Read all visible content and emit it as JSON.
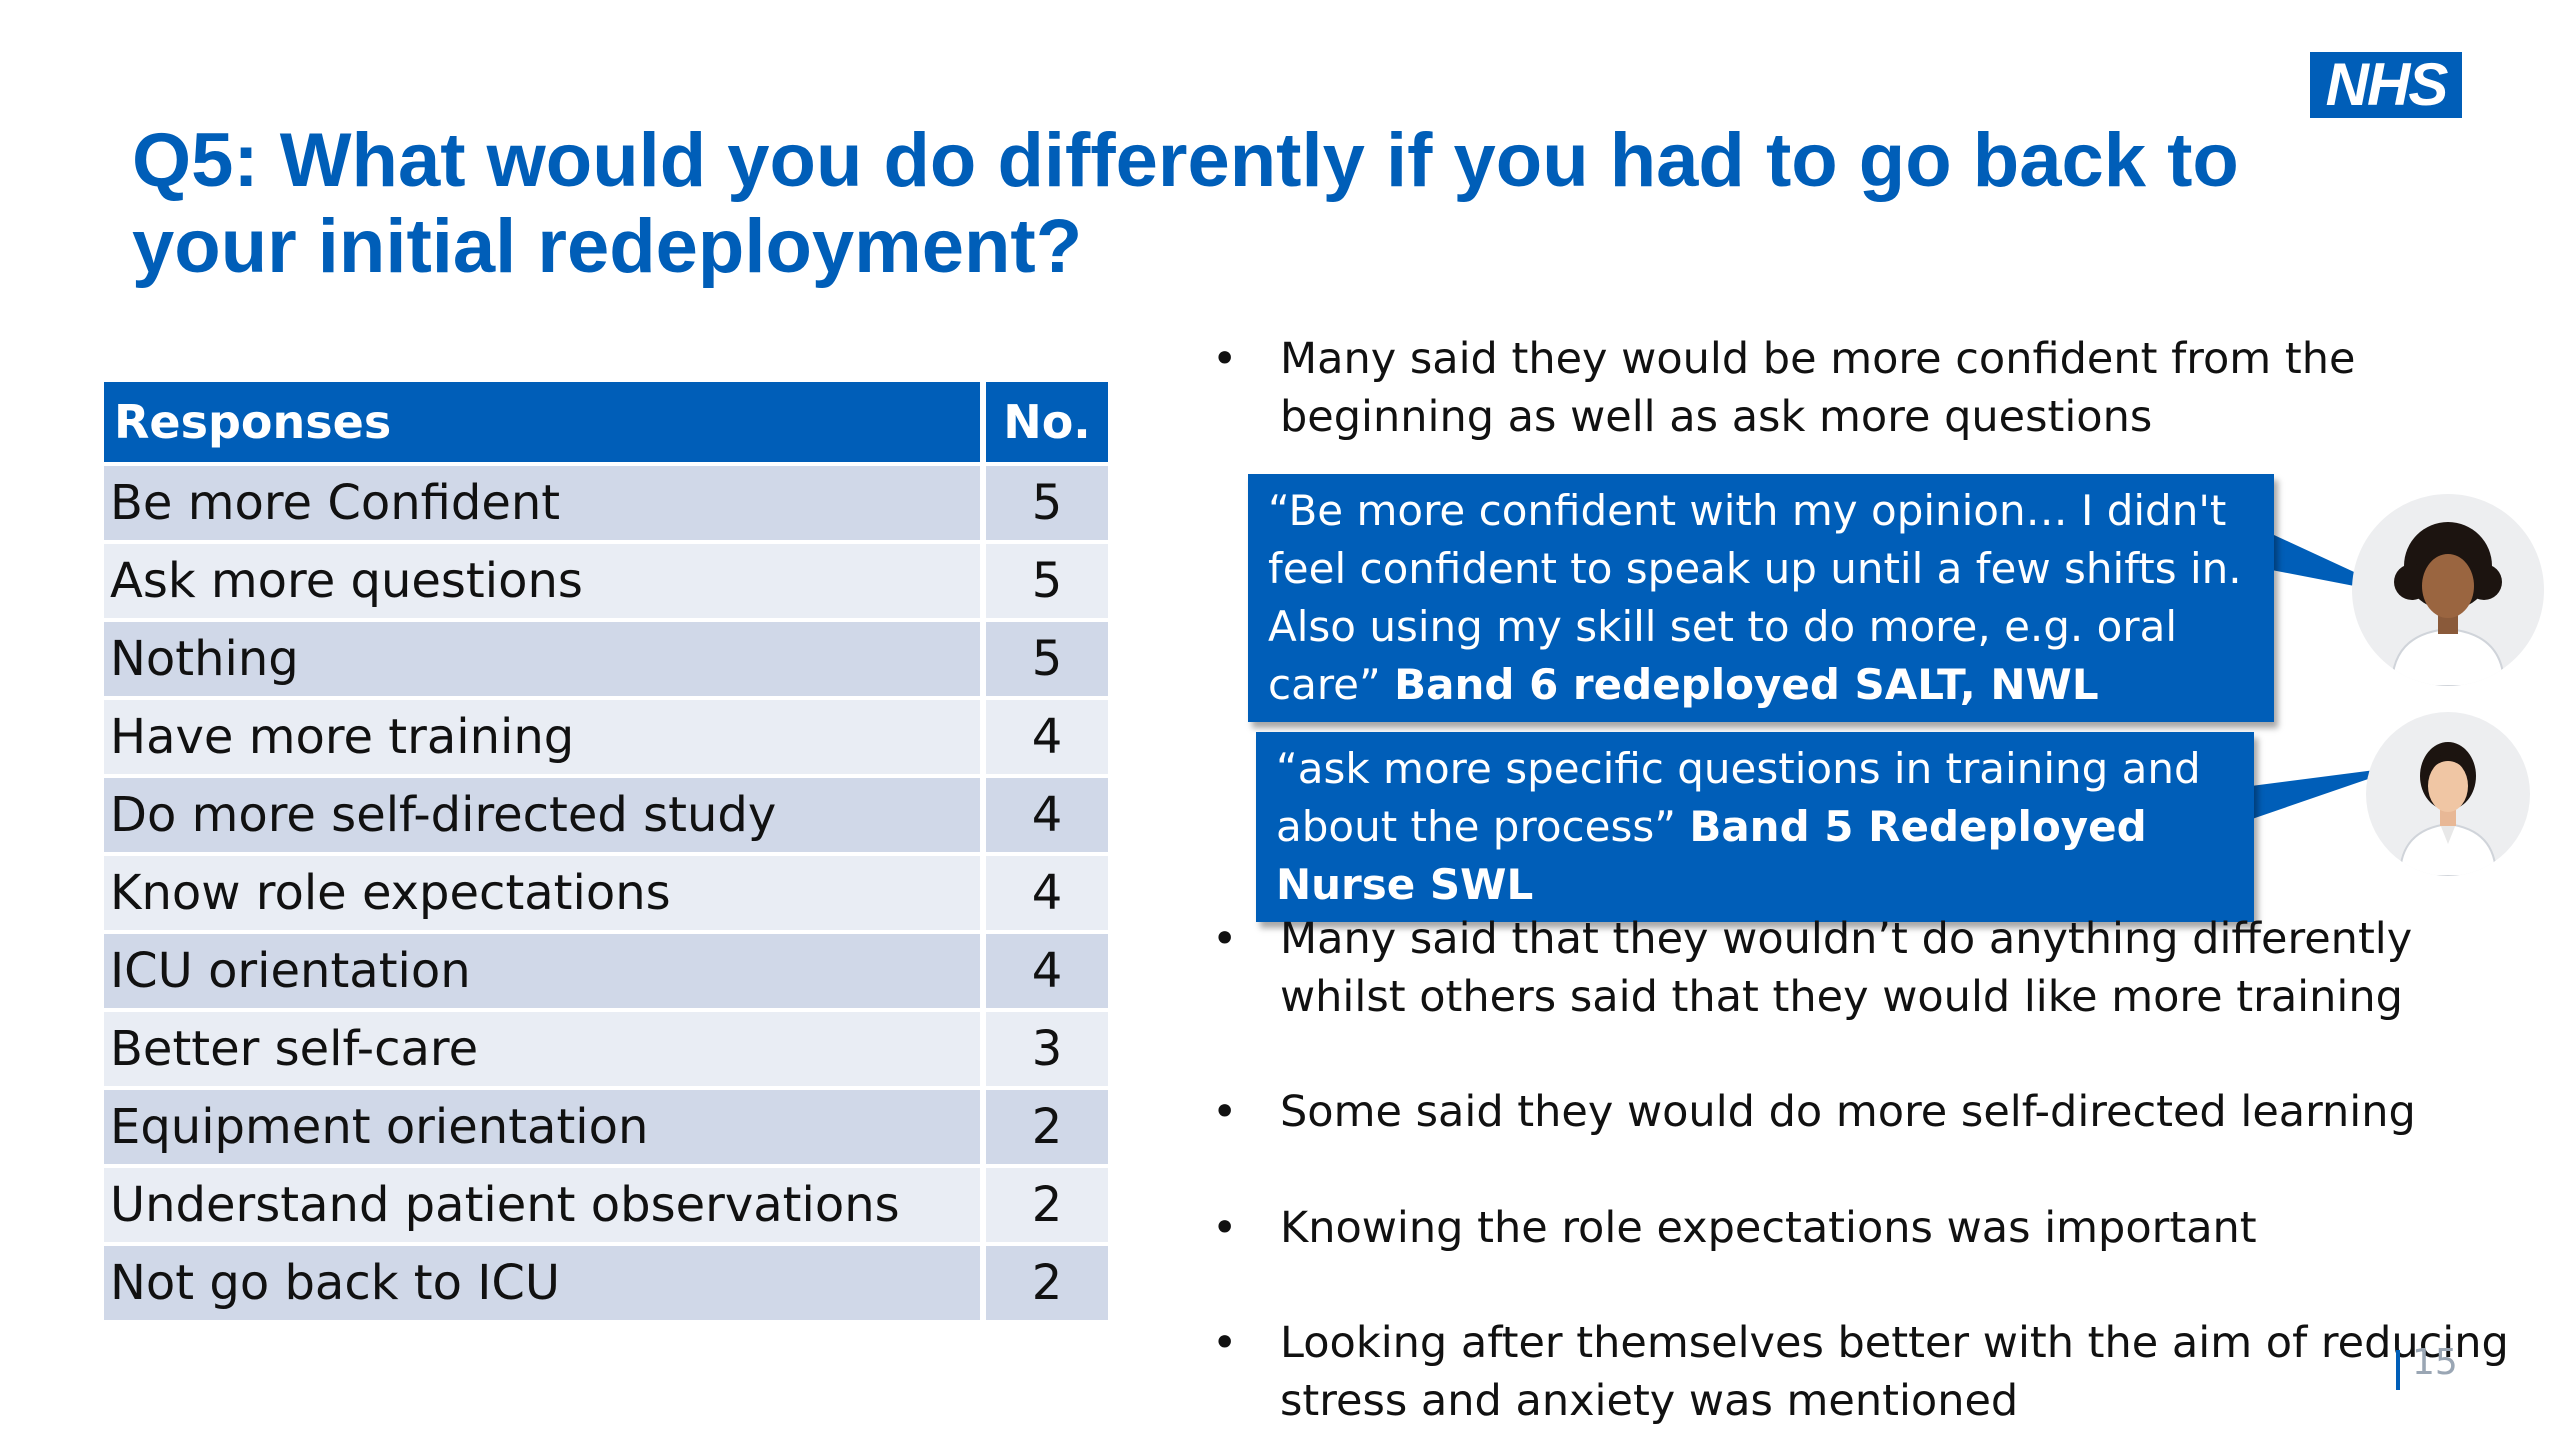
{
  "logo": "NHS",
  "title": "Q5: What would you do differently if you had to go back to your initial redeployment?",
  "table": {
    "headers": [
      "Responses",
      "No."
    ],
    "rows": [
      {
        "response": "Be more Confident",
        "count": "5"
      },
      {
        "response": "Ask more questions",
        "count": "5"
      },
      {
        "response": "Nothing",
        "count": "5"
      },
      {
        "response": "Have more training",
        "count": "4"
      },
      {
        "response": "Do more self-directed study",
        "count": "4"
      },
      {
        "response": "Know role expectations",
        "count": "4"
      },
      {
        "response": "ICU orientation",
        "count": "4"
      },
      {
        "response": "Better self-care",
        "count": "3"
      },
      {
        "response": "Equipment orientation",
        "count": "2"
      },
      {
        "response": "Understand patient observations",
        "count": "2"
      },
      {
        "response": "Not go back to ICU",
        "count": "2"
      }
    ]
  },
  "bullets": [
    "Many said they would be more confident from the beginning as well as ask more questions",
    "Many said that they wouldn’t do anything differently whilst others said that they would like more training",
    "Some said they would do more self-directed learning",
    "Knowing the role expectations was important",
    "Looking after themselves better with the aim of reducing stress and anxiety was mentioned"
  ],
  "bullet_marker": "•",
  "quotes": [
    {
      "text": "“Be more confident with my opinion… I didn't feel confident to speak up until a few shifts in. Also using my skill set to do more, e.g. oral care”",
      "attribution": "Band 6 redeployed SALT, NWL"
    },
    {
      "text": "“ask more specific questions in training and about the process”",
      "attribution": "Band 5 Redeployed Nurse SWL"
    }
  ],
  "avatars": [
    "avatar-woman-curly-hair",
    "avatar-nurse"
  ],
  "page_number": "15",
  "colors": {
    "nhs_blue": "#005EB8",
    "row_dark": "#D0D8E8",
    "row_light": "#E9EDF4"
  }
}
